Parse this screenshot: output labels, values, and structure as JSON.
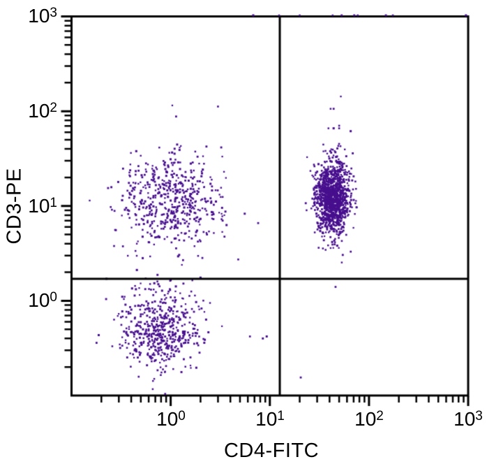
{
  "chart_data": {
    "type": "scatter",
    "subtype": "flow-cytometry-quadrant-dot-plot",
    "title": "",
    "xlabel": "CD4-FITC",
    "ylabel": "CD3-PE",
    "x_scale": "log",
    "y_scale": "log",
    "x_range": [
      0.1,
      1000
    ],
    "y_range": [
      0.1,
      1000
    ],
    "grid": false,
    "legend": "none",
    "background_color": "#ffffff",
    "axis_color": "#000000",
    "dot_color": "#470f8e",
    "quadrant_gates": {
      "x": 12.6,
      "y": 1.7
    },
    "x_ticks": [
      {
        "base": "10",
        "exp": "0",
        "value": 1
      },
      {
        "base": "10",
        "exp": "1",
        "value": 10
      },
      {
        "base": "10",
        "exp": "2",
        "value": 100
      },
      {
        "base": "10",
        "exp": "3",
        "value": 1000
      }
    ],
    "y_ticks": [
      {
        "base": "10",
        "exp": "3",
        "value": 1000
      },
      {
        "base": "10",
        "exp": "2",
        "value": 100
      },
      {
        "base": "10",
        "exp": "1",
        "value": 10
      },
      {
        "base": "10",
        "exp": "0",
        "value": 1
      }
    ],
    "minor_tick_multipliers": [
      2,
      3,
      4,
      5,
      6,
      7,
      8,
      9
    ],
    "random_seed": 42,
    "clusters": [
      {
        "name": "upper-left-population",
        "count": 540,
        "center": [
          1.0,
          11.1
        ],
        "sigma_log": [
          0.26,
          0.26
        ]
      },
      {
        "name": "lower-left-population",
        "count": 520,
        "center": [
          0.79,
          0.5
        ],
        "sigma_log": [
          0.21,
          0.22
        ]
      },
      {
        "name": "upper-right-population",
        "count": 1200,
        "center": [
          43.0,
          12.0
        ],
        "sigma_log": [
          0.085,
          0.2
        ]
      }
    ],
    "outlier_points": [
      [
        3.0,
        112
      ],
      [
        1.77,
        37.5
      ],
      [
        52,
        143
      ],
      [
        41,
        106
      ],
      [
        44,
        106
      ],
      [
        39,
        66
      ],
      [
        44,
        66
      ],
      [
        50,
        66
      ],
      [
        49,
        43
      ],
      [
        45,
        38
      ],
      [
        6.3,
        0.42
      ],
      [
        8.5,
        0.4
      ],
      [
        9.3,
        0.42
      ],
      [
        46,
        1.4
      ],
      [
        20.5,
        0.155
      ],
      [
        0.88,
        0.104
      ]
    ],
    "top_edge_x": [
      6.8,
      12.4,
      20,
      43,
      53,
      71,
      77,
      148,
      174,
      950
    ]
  }
}
